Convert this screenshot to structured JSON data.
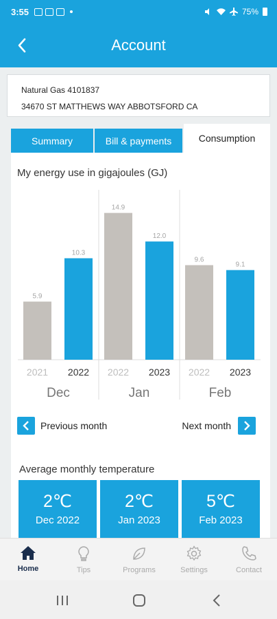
{
  "status_bar": {
    "time": "3:55",
    "battery": "75%"
  },
  "header": {
    "title": "Account"
  },
  "account": {
    "line1": "Natural Gas 4101837",
    "line2": "34670 ST MATTHEWS WAY ABBOTSFORD CA"
  },
  "tabs": [
    {
      "label": "Summary",
      "active": false
    },
    {
      "label": "Bill & payments",
      "active": false
    },
    {
      "label": "Consumption",
      "active": true
    }
  ],
  "consumption": {
    "heading": "My energy use in gigajoules (GJ)"
  },
  "chart_data": {
    "type": "bar",
    "groups": [
      {
        "month": "Dec",
        "bars": [
          {
            "year": "2021",
            "value": 5.9,
            "label": "5.9",
            "current": false
          },
          {
            "year": "2022",
            "value": 10.3,
            "label": "10.3",
            "current": true
          }
        ]
      },
      {
        "month": "Jan",
        "bars": [
          {
            "year": "2022",
            "value": 14.9,
            "label": "14.9",
            "current": false
          },
          {
            "year": "2023",
            "value": 12.0,
            "label": "12.0",
            "current": true
          }
        ]
      },
      {
        "month": "Feb",
        "bars": [
          {
            "year": "2022",
            "value": 9.6,
            "label": "9.6",
            "current": false
          },
          {
            "year": "2023",
            "value": 9.1,
            "label": "9.1",
            "current": true
          }
        ]
      }
    ],
    "ylim": [
      0,
      15.5
    ],
    "grid": false,
    "colors": {
      "previous": "#c4c0bb",
      "current": "#1aa3dd"
    }
  },
  "navigation": {
    "previous_label": "Previous month",
    "next_label": "Next month"
  },
  "temperature": {
    "heading": "Average monthly temperature",
    "tiles": [
      {
        "value": "2℃",
        "month": "Dec 2022"
      },
      {
        "value": "2℃",
        "month": "Jan 2023"
      },
      {
        "value": "5℃",
        "month": "Feb 2023"
      }
    ]
  },
  "bottom_nav": [
    {
      "label": "Home",
      "icon": "home-icon",
      "active": true
    },
    {
      "label": "Tips",
      "icon": "lightbulb-icon",
      "active": false
    },
    {
      "label": "Programs",
      "icon": "leaf-icon",
      "active": false
    },
    {
      "label": "Settings",
      "icon": "gear-icon",
      "active": false
    },
    {
      "label": "Contact",
      "icon": "phone-icon",
      "active": false
    }
  ],
  "colors": {
    "accent": "#1aa3dd",
    "nav_active": "#1a2d4c",
    "nav_inactive": "#aaaaaa"
  }
}
